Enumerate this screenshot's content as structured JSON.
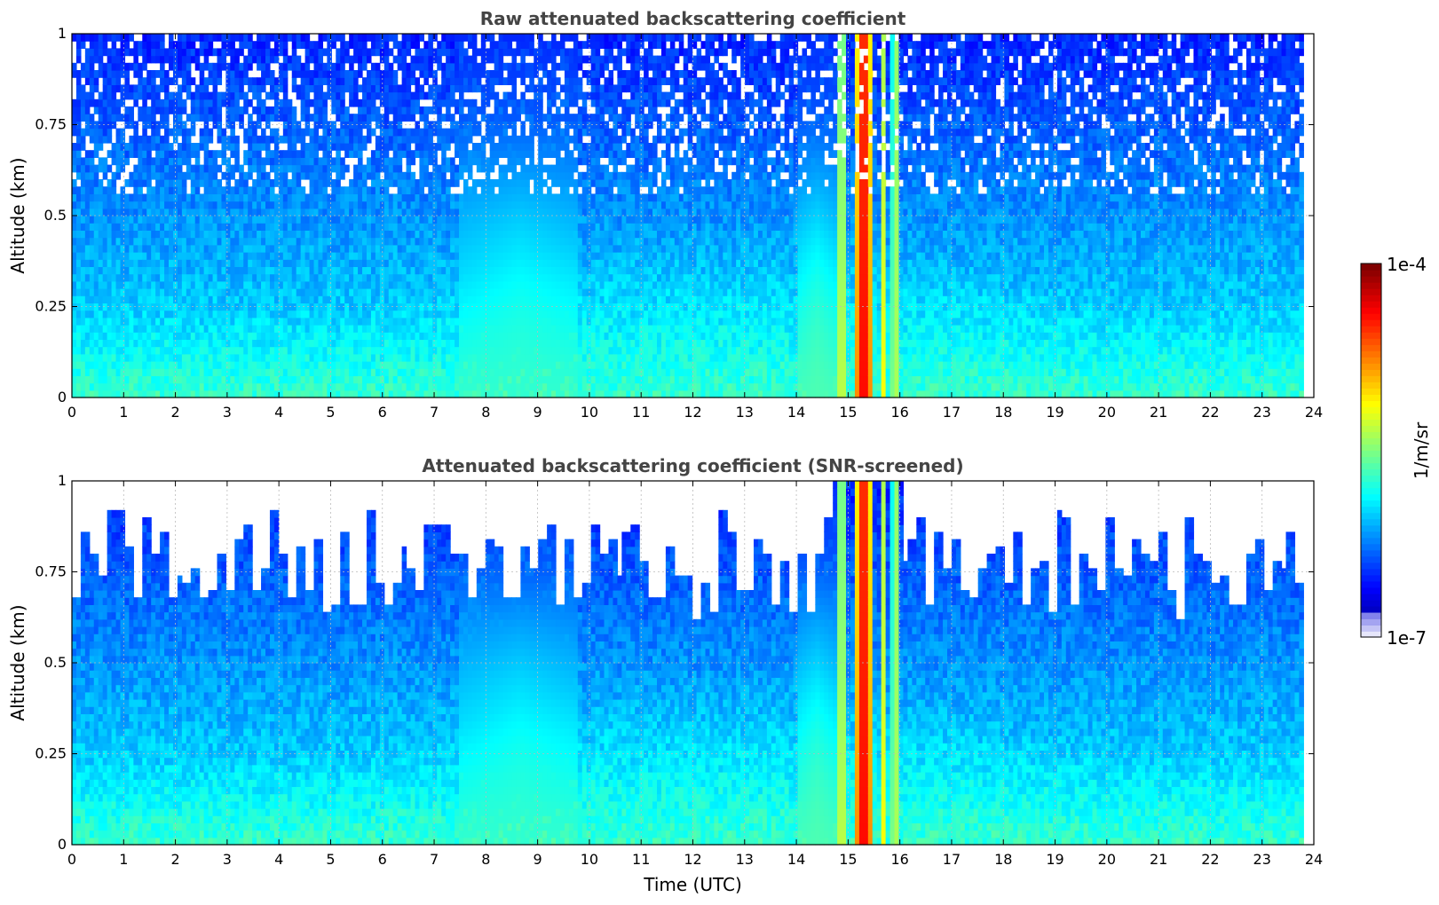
{
  "chart_data": [
    {
      "type": "heatmap",
      "title": "Raw attenuated backscattering coefficient",
      "xlabel": "",
      "ylabel": "Altitude (km)",
      "xlim": [
        0,
        24
      ],
      "ylim": [
        0,
        1
      ],
      "x_ticks": [
        "0",
        "1",
        "2",
        "3",
        "4",
        "5",
        "6",
        "7",
        "8",
        "9",
        "10",
        "11",
        "12",
        "13",
        "14",
        "15",
        "16",
        "17",
        "18",
        "19",
        "20",
        "21",
        "22",
        "23",
        "24"
      ],
      "y_ticks": [
        "0",
        "0.25",
        "0.5",
        "0.75",
        "1"
      ],
      "grid": true,
      "data_end_time": 23.8,
      "features": [
        {
          "t0": 14.8,
          "t1": 14.95,
          "level": 0.6
        },
        {
          "t0": 15.15,
          "t1": 15.45,
          "level": 0.93
        },
        {
          "t0": 15.6,
          "t1": 15.7,
          "level": 0.7
        },
        {
          "t0": 15.85,
          "t1": 16.0,
          "level": 0.55
        },
        {
          "t0": 7.5,
          "t1": 9.8,
          "level": 0.42
        },
        {
          "t0": 14.0,
          "t1": 14.8,
          "level": 0.45
        }
      ]
    },
    {
      "type": "heatmap",
      "title": "Attenuated backscattering coefficient (SNR-screened)",
      "xlabel": "Time (UTC)",
      "ylabel": "Altitude (km)",
      "xlim": [
        0,
        24
      ],
      "ylim": [
        0,
        1
      ],
      "x_ticks": [
        "0",
        "1",
        "2",
        "3",
        "4",
        "5",
        "6",
        "7",
        "8",
        "9",
        "10",
        "11",
        "12",
        "13",
        "14",
        "15",
        "16",
        "17",
        "18",
        "19",
        "20",
        "21",
        "22",
        "23",
        "24"
      ],
      "y_ticks": [
        "0",
        "0.25",
        "0.5",
        "0.75",
        "1"
      ],
      "grid": true,
      "data_end_time": 23.8,
      "features": [
        {
          "t0": 14.8,
          "t1": 14.95,
          "level": 0.6
        },
        {
          "t0": 15.15,
          "t1": 15.45,
          "level": 0.93
        },
        {
          "t0": 15.6,
          "t1": 15.7,
          "level": 0.7
        },
        {
          "t0": 15.85,
          "t1": 16.0,
          "level": 0.55
        },
        {
          "t0": 7.5,
          "t1": 9.8,
          "level": 0.42
        },
        {
          "t0": 14.0,
          "t1": 14.8,
          "level": 0.45
        }
      ]
    }
  ],
  "colorbar": {
    "label": "1/m/sr",
    "max_label": "1e-4",
    "min_label": "1e-7",
    "colormap": "jet",
    "scale": "log",
    "range": [
      1e-07,
      0.0001
    ]
  }
}
